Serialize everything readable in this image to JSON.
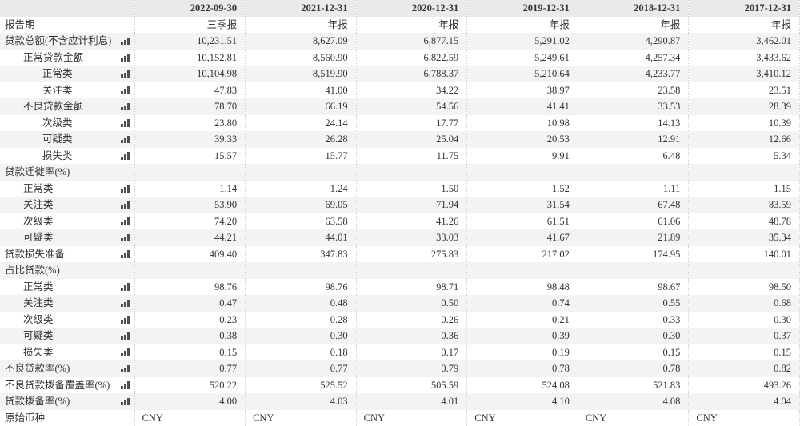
{
  "colors": {
    "stripe": "#f3f3f3",
    "header_row": "#eaeaea",
    "grid_dotted": "#d6d6d6",
    "text": "#333333",
    "icon": "#4f4f4f"
  },
  "table": {
    "columns": [
      "2022-09-30",
      "2021-12-31",
      "2020-12-31",
      "2019-12-31",
      "2018-12-31",
      "2017-12-31"
    ],
    "rows": [
      {
        "label": "报告期",
        "indent": 0,
        "chart_icon": false,
        "align": "right",
        "values": [
          "三季报",
          "年报",
          "年报",
          "年报",
          "年报",
          "年报"
        ]
      },
      {
        "label": "贷款总额(不含应计利息)",
        "indent": 0,
        "chart_icon": true,
        "align": "right",
        "values": [
          "10,231.51",
          "8,627.09",
          "6,877.15",
          "5,291.02",
          "4,290.87",
          "3,462.01"
        ]
      },
      {
        "label": "正常贷款金额",
        "indent": 1,
        "chart_icon": true,
        "align": "right",
        "values": [
          "10,152.81",
          "8,560.90",
          "6,822.59",
          "5,249.61",
          "4,257.34",
          "3,433.62"
        ]
      },
      {
        "label": "正常类",
        "indent": 2,
        "chart_icon": true,
        "align": "right",
        "values": [
          "10,104.98",
          "8,519.90",
          "6,788.37",
          "5,210.64",
          "4,233.77",
          "3,410.12"
        ]
      },
      {
        "label": "关注类",
        "indent": 2,
        "chart_icon": true,
        "align": "right",
        "values": [
          "47.83",
          "41.00",
          "34.22",
          "38.97",
          "23.58",
          "23.51"
        ]
      },
      {
        "label": "不良贷款金额",
        "indent": 1,
        "chart_icon": true,
        "align": "right",
        "values": [
          "78.70",
          "66.19",
          "54.56",
          "41.41",
          "33.53",
          "28.39"
        ]
      },
      {
        "label": "次级类",
        "indent": 2,
        "chart_icon": true,
        "align": "right",
        "values": [
          "23.80",
          "24.14",
          "17.77",
          "10.98",
          "14.13",
          "10.39"
        ]
      },
      {
        "label": "可疑类",
        "indent": 2,
        "chart_icon": true,
        "align": "right",
        "values": [
          "39.33",
          "26.28",
          "25.04",
          "20.53",
          "12.91",
          "12.66"
        ]
      },
      {
        "label": "损失类",
        "indent": 2,
        "chart_icon": true,
        "align": "right",
        "values": [
          "15.57",
          "15.77",
          "11.75",
          "9.91",
          "6.48",
          "5.34"
        ]
      },
      {
        "label": "贷款迁徙率(%)",
        "indent": 0,
        "chart_icon": false,
        "align": "right",
        "values": [
          "",
          "",
          "",
          "",
          "",
          ""
        ]
      },
      {
        "label": "正常类",
        "indent": 1,
        "chart_icon": true,
        "align": "right",
        "values": [
          "1.14",
          "1.24",
          "1.50",
          "1.52",
          "1.11",
          "1.15"
        ]
      },
      {
        "label": "关注类",
        "indent": 1,
        "chart_icon": true,
        "align": "right",
        "values": [
          "53.90",
          "69.05",
          "71.94",
          "31.54",
          "67.48",
          "83.59"
        ]
      },
      {
        "label": "次级类",
        "indent": 1,
        "chart_icon": true,
        "align": "right",
        "values": [
          "74.20",
          "63.58",
          "41.26",
          "61.51",
          "61.06",
          "48.78"
        ]
      },
      {
        "label": "可疑类",
        "indent": 1,
        "chart_icon": true,
        "align": "right",
        "values": [
          "44.21",
          "44.01",
          "33.03",
          "41.67",
          "21.89",
          "35.34"
        ]
      },
      {
        "label": "贷款损失准备",
        "indent": 0,
        "chart_icon": true,
        "align": "right",
        "values": [
          "409.40",
          "347.83",
          "275.83",
          "217.02",
          "174.95",
          "140.01"
        ]
      },
      {
        "label": "占比贷款(%)",
        "indent": 0,
        "chart_icon": false,
        "align": "right",
        "values": [
          "",
          "",
          "",
          "",
          "",
          ""
        ]
      },
      {
        "label": "正常类",
        "indent": 1,
        "chart_icon": true,
        "align": "right",
        "values": [
          "98.76",
          "98.76",
          "98.71",
          "98.48",
          "98.67",
          "98.50"
        ]
      },
      {
        "label": "关注类",
        "indent": 1,
        "chart_icon": true,
        "align": "right",
        "values": [
          "0.47",
          "0.48",
          "0.50",
          "0.74",
          "0.55",
          "0.68"
        ]
      },
      {
        "label": "次级类",
        "indent": 1,
        "chart_icon": true,
        "align": "right",
        "values": [
          "0.23",
          "0.28",
          "0.26",
          "0.21",
          "0.33",
          "0.30"
        ]
      },
      {
        "label": "可疑类",
        "indent": 1,
        "chart_icon": true,
        "align": "right",
        "values": [
          "0.38",
          "0.30",
          "0.36",
          "0.39",
          "0.30",
          "0.37"
        ]
      },
      {
        "label": "损失类",
        "indent": 1,
        "chart_icon": true,
        "align": "right",
        "values": [
          "0.15",
          "0.18",
          "0.17",
          "0.19",
          "0.15",
          "0.15"
        ]
      },
      {
        "label": "不良贷款率(%)",
        "indent": 0,
        "chart_icon": true,
        "align": "right",
        "values": [
          "0.77",
          "0.77",
          "0.79",
          "0.78",
          "0.78",
          "0.82"
        ]
      },
      {
        "label": "不良贷款拨备覆盖率(%)",
        "indent": 0,
        "chart_icon": true,
        "align": "right",
        "values": [
          "520.22",
          "525.52",
          "505.59",
          "524.08",
          "521.83",
          "493.26"
        ]
      },
      {
        "label": "贷款拨备率(%)",
        "indent": 0,
        "chart_icon": true,
        "align": "right",
        "values": [
          "4.00",
          "4.03",
          "4.01",
          "4.10",
          "4.08",
          "4.04"
        ]
      },
      {
        "label": "原始币种",
        "indent": 0,
        "chart_icon": false,
        "align": "left",
        "values": [
          "CNY",
          "CNY",
          "CNY",
          "CNY",
          "CNY",
          "CNY"
        ]
      }
    ]
  }
}
